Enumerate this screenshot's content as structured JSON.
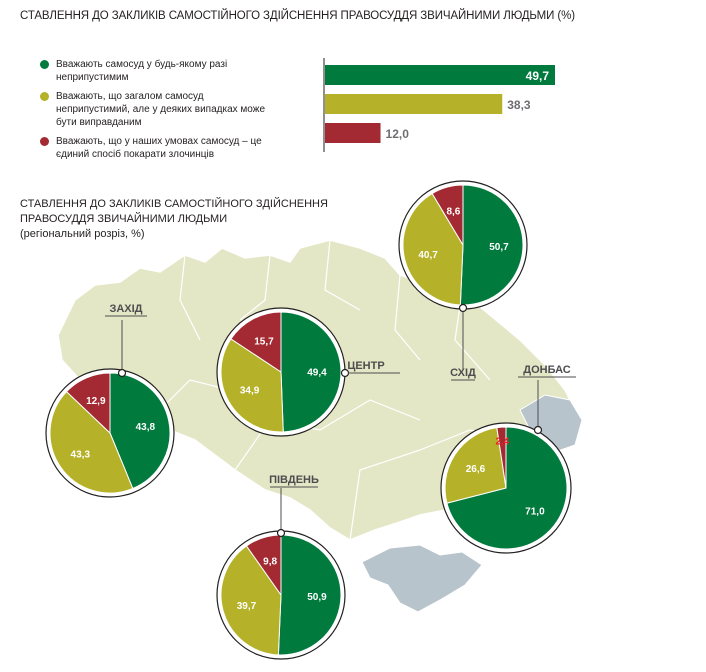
{
  "title": "СТАВЛЕННЯ ДО ЗАКЛИКІВ САМОСТІЙНОГО ЗДІЙСНЕННЯ ПРАВОСУДДЯ ЗВИЧАЙНИМИ ЛЮДЬМИ (%)",
  "subtitle_lines": [
    "СТАВЛЕННЯ ДО ЗАКЛИКІВ САМОСТІЙНОГО ЗДІЙСНЕННЯ",
    "ПРАВОСУДДЯ ЗВИЧАЙНИМИ ЛЮДЬМИ",
    "(регіональний розріз, %)"
  ],
  "legend": [
    {
      "text": "Вважають самосуд у будь-якому разі неприпустимим",
      "color": "#007a3d"
    },
    {
      "text": "Вважають, що загалом самосуд неприпустимий, але у деяких випадках може бути виправданим",
      "color": "#b5b22a"
    },
    {
      "text": "Вважають, що у наших умовах самосуд – це єдиний спосіб покарати злочинців",
      "color": "#a32a32"
    }
  ],
  "chart_data": [
    {
      "type": "bar",
      "orientation": "horizontal",
      "categories": [
        "Вважають самосуд у будь-якому разі неприпустимим",
        "Вважають, що загалом самосуд неприпустимий, але у деяких випадках може бути виправданим",
        "Вважають, що у наших умовах самосуд – це єдиний спосіб покарати злочинців"
      ],
      "values": [
        49.7,
        38.3,
        12.0
      ],
      "labels": [
        "49,7",
        "38,3",
        "12,0"
      ],
      "colors": [
        "#007a3d",
        "#b5b22a",
        "#a32a32"
      ]
    },
    {
      "type": "pie",
      "regions": [
        {
          "name": "ЗАХІД",
          "values": [
            43.8,
            43.3,
            12.9
          ],
          "labels": [
            "43,8",
            "43,3",
            "12,9"
          ]
        },
        {
          "name": "ЦЕНТР",
          "values": [
            49.4,
            34.9,
            15.7
          ],
          "labels": [
            "49,4",
            "34,9",
            "15,7"
          ]
        },
        {
          "name": "СХІД",
          "values": [
            50.7,
            40.7,
            8.6
          ],
          "labels": [
            "50,7",
            "40,7",
            "8,6"
          ]
        },
        {
          "name": "ДОНБАС",
          "values": [
            71.0,
            26.6,
            2.4
          ],
          "labels": [
            "71,0",
            "26,6",
            "2,4"
          ]
        },
        {
          "name": "ПІВДЕНЬ",
          "values": [
            50.9,
            39.7,
            9.8
          ],
          "labels": [
            "50,9",
            "39,7",
            "9,8"
          ]
        }
      ],
      "colors": [
        "#007a3d",
        "#b5b22a",
        "#a32a32"
      ]
    }
  ]
}
